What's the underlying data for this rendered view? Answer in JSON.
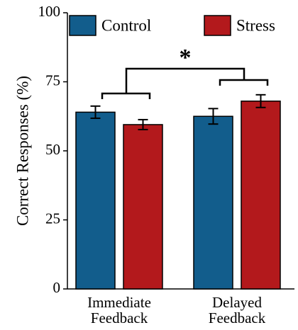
{
  "chart_data": {
    "type": "bar",
    "y_label": "Correct Responses (%)",
    "categories": [
      "Immediate\nFeedback",
      "Delayed\nFeedback"
    ],
    "series": [
      {
        "name": "Control",
        "color": "#125d8c",
        "values": [
          64,
          62.5
        ],
        "errors": [
          2.2,
          2.8
        ]
      },
      {
        "name": "Stress",
        "color": "#b3191c",
        "values": [
          59.5,
          68
        ],
        "errors": [
          1.8,
          2.3
        ]
      }
    ],
    "annotation": "*",
    "ylim": [
      0,
      100
    ],
    "yticks": [
      0,
      25,
      50,
      75,
      100
    ],
    "grid": false
  }
}
